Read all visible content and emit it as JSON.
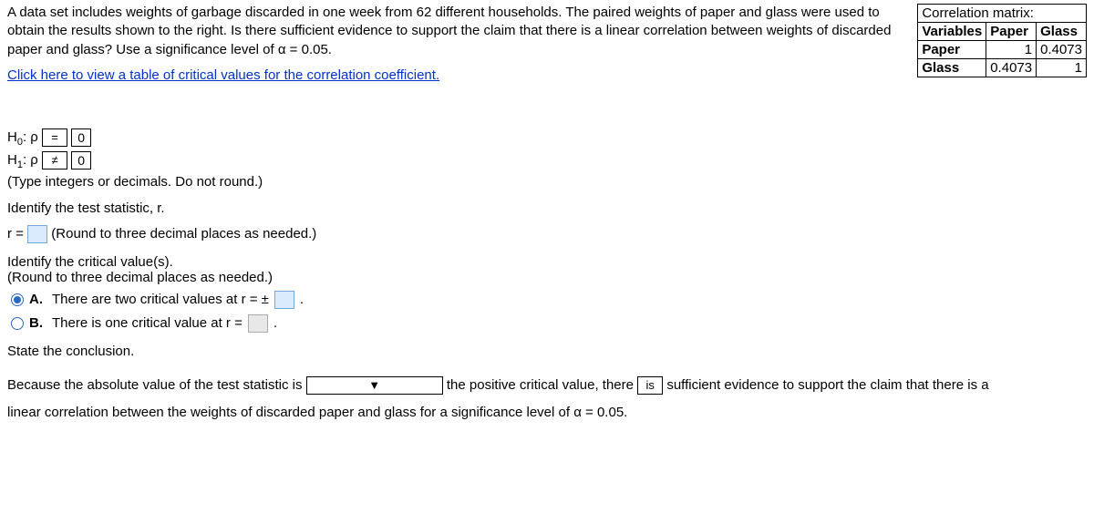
{
  "problem": {
    "text": "A data set includes weights of garbage discarded in one week from 62 different households. The paired weights of paper and glass were used to obtain the results shown to the right. Is there sufficient evidence to support the claim that there is a linear correlation between weights of discarded paper and glass? Use a significance level of α = 0.05.",
    "link": "Click here to view a table of critical values for the correlation coefficient."
  },
  "corr": {
    "title": "Correlation matrix:",
    "h_var": "Variables",
    "h_paper": "Paper",
    "h_glass": "Glass",
    "r_paper": "Paper",
    "r_glass": "Glass",
    "v11": "1",
    "v12": "0.4073",
    "v21": "0.4073",
    "v22": "1"
  },
  "hyp": {
    "h0_label": "H",
    "h0_sub": "0",
    "h1_label": "H",
    "h1_sub": "1",
    "rho": ": ρ",
    "eq": "=",
    "neq": "≠",
    "val0": "0",
    "val1": "0",
    "instr": "(Type integers or decimals. Do not round.)"
  },
  "teststat": {
    "prompt": "Identify the test statistic, r.",
    "prefix": "r =",
    "instr": "(Round to three decimal places as needed.)"
  },
  "critval": {
    "prompt": "Identify the critical value(s).",
    "instr": "(Round to three decimal places as needed.)",
    "optA_label": "A.",
    "optA_text1": "There are two critical values at r = ±",
    "optA_text2": ".",
    "optB_label": "B.",
    "optB_text1": "There is one critical value at r =",
    "optB_text2": "."
  },
  "conclusion": {
    "prompt": "State the conclusion.",
    "line1a": "Because the absolute value of the test statistic is",
    "line1b": "the positive critical value, there",
    "drop2_val": "is",
    "line1c": "sufficient evidence to support the claim that there is a",
    "line2": "linear correlation between the weights of discarded paper and glass for a significance level of α = 0.05."
  }
}
